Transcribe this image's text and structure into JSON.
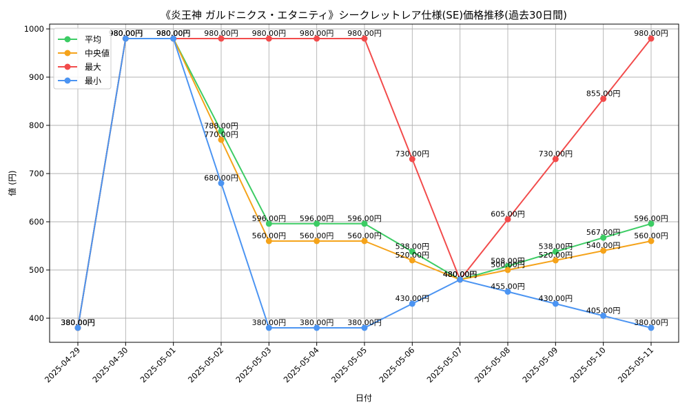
{
  "chart_data": {
    "type": "line",
    "title": "《炎王神 ガルドニクス・エタニティ》シークレットレア仕様(SE)価格推移(過去30日間)",
    "xlabel": "日付",
    "ylabel": "値 (円)",
    "x": [
      "2025-04-29",
      "2025-04-30",
      "2025-05-01",
      "2025-05-02",
      "2025-05-03",
      "2025-05-04",
      "2025-05-05",
      "2025-05-06",
      "2025-05-07",
      "2025-05-08",
      "2025-05-09",
      "2025-05-10",
      "2025-05-11"
    ],
    "ylim": [
      350,
      1010
    ],
    "yticks": [
      400,
      500,
      600,
      700,
      800,
      900,
      1000
    ],
    "grid": true,
    "legend_position": "top-left",
    "value_suffix": "円",
    "series": [
      {
        "name": "平均",
        "color": "#3ccc64",
        "values": [
          380,
          980,
          980,
          788,
          596,
          596,
          596,
          538,
          480,
          508,
          538,
          567,
          596
        ]
      },
      {
        "name": "中央値",
        "color": "#f5a31a",
        "values": [
          380,
          980,
          980,
          770,
          560,
          560,
          560,
          520,
          480,
          500,
          520,
          540,
          560
        ]
      },
      {
        "name": "最大",
        "color": "#f24b4b",
        "values": [
          380,
          980,
          980,
          980,
          980,
          980,
          980,
          730,
          480,
          605,
          730,
          855,
          980
        ]
      },
      {
        "name": "最小",
        "color": "#4b94f2",
        "values": [
          380,
          980,
          980,
          680,
          380,
          380,
          380,
          430,
          480,
          455,
          430,
          405,
          380
        ]
      }
    ]
  }
}
